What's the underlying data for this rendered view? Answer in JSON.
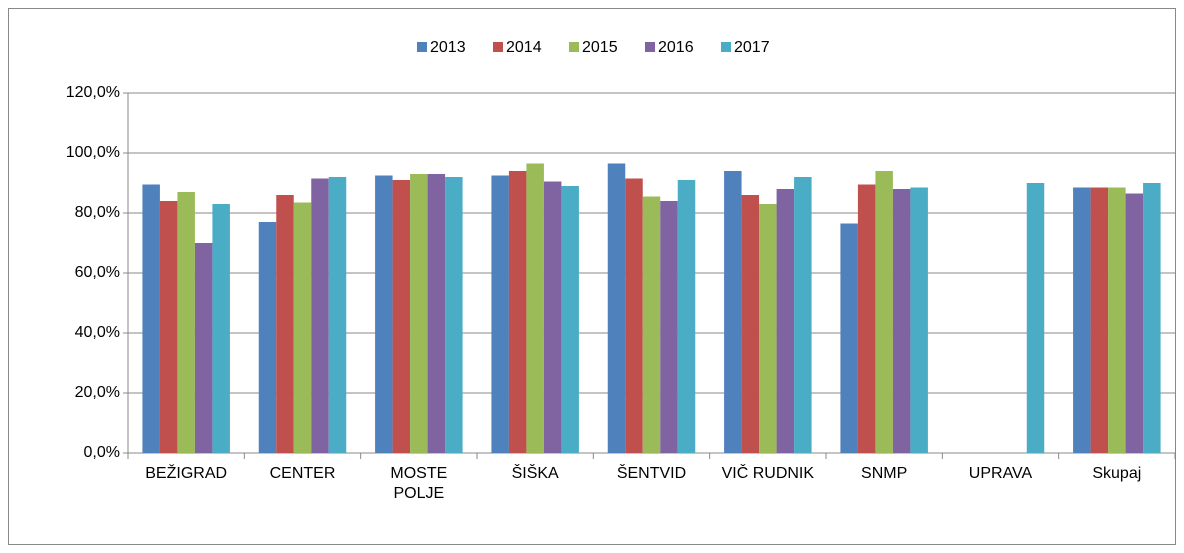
{
  "chart_data": {
    "type": "bar",
    "categories": [
      "BEŽIGRAD",
      "CENTER",
      "MOSTE POLJE",
      "ŠIŠKA",
      "ŠENTVID",
      "VIČ RUDNIK",
      "SNMP",
      "UPRAVA",
      "Skupaj"
    ],
    "series": [
      {
        "name": "2013",
        "color": "#4f81bd",
        "values": [
          89.5,
          77,
          92.5,
          92.5,
          96.5,
          94,
          76.5,
          null,
          88.5
        ]
      },
      {
        "name": "2014",
        "color": "#c0504d",
        "values": [
          84,
          86,
          91,
          94,
          91.5,
          86,
          89.5,
          null,
          88.5
        ]
      },
      {
        "name": "2015",
        "color": "#9bbb59",
        "values": [
          87,
          83.5,
          93,
          96.5,
          85.5,
          83,
          94,
          null,
          88.5
        ]
      },
      {
        "name": "2016",
        "color": "#8064a2",
        "values": [
          70,
          91.5,
          93,
          90.5,
          84,
          88,
          88,
          null,
          86.5
        ]
      },
      {
        "name": "2017",
        "color": "#4bacc6",
        "values": [
          83,
          92,
          92,
          89,
          91,
          92,
          88.5,
          90,
          90
        ]
      }
    ],
    "ylim": [
      0,
      120
    ],
    "yticks": [
      {
        "value": 0,
        "label": "0,0%"
      },
      {
        "value": 20,
        "label": "20,0%"
      },
      {
        "value": 40,
        "label": "40,0%"
      },
      {
        "value": 60,
        "label": "60,0%"
      },
      {
        "value": 80,
        "label": "80,0%"
      },
      {
        "value": 100,
        "label": "100,0%"
      },
      {
        "value": 120,
        "label": "120,0%"
      }
    ],
    "grid": true,
    "legend": "top"
  }
}
